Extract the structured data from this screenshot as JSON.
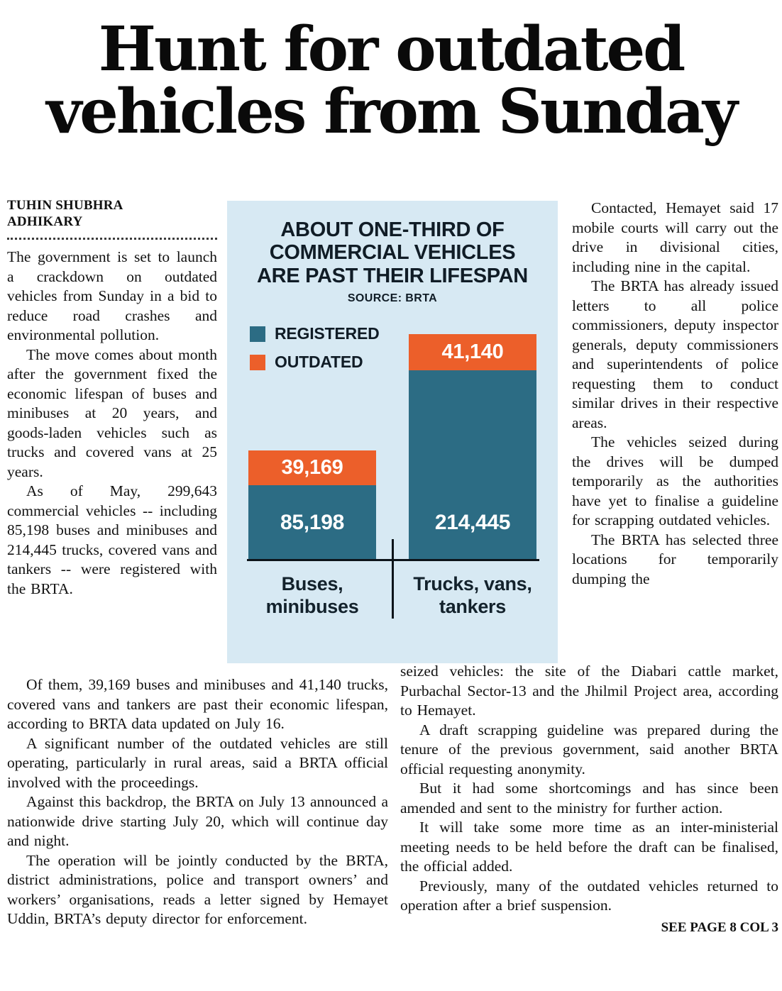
{
  "headline": "Hunt for outdated vehicles from Sunday",
  "byline": "TUHIN SHUBHRA ADHIKARY",
  "article": {
    "left_column": [
      "The government is set to launch a crackdown on outdated vehicles from Sunday in a bid to reduce road crashes and environmental pollution.",
      "The move comes about month after the government fixed the economic lifespan of buses and minibuses at 20 years, and goods-laden vehicles such as trucks and covered vans at 25 years.",
      "As of May, 299,643 commercial vehicles -- including 85,198 buses and minibuses and 214,445 trucks, covered vans and tankers -- were registered with the BRTA."
    ],
    "bottom_left": [
      "Of them, 39,169 buses and minibuses and 41,140 trucks, covered vans and tankers are past their economic lifespan, according to BRTA data updated on July 16.",
      "A significant number of the outdated vehicles are still operating, particularly in rural areas, said a BRTA official involved with the proceedings.",
      "Against this backdrop, the BRTA on July 13 announced a nationwide drive starting July 20, which will continue day and night.",
      "The operation will be jointly conducted by the BRTA, district administrations, police and transport owners’ and workers’ organisations, reads a letter signed by Hemayet Uddin, BRTA’s deputy director for enforcement."
    ],
    "right_column": [
      "Contacted, Hemayet said 17 mobile courts will carry out the drive in divisional cities, including nine in the capital.",
      "The BRTA has already issued letters to all police commissioners, deputy inspector generals, deputy commissioners and superintendents of police requesting them to conduct similar drives in their respective areas.",
      "The vehicles seized during the drives will be dumped temporarily as the authorities have yet to finalise a guideline for scrapping outdated vehicles.",
      "The BRTA has selected three locations for temporarily dumping the"
    ],
    "bottom_right": [
      "seized vehicles: the site of the Diabari cattle market, Purbachal Sector-13 and the Jhilmil Project area, according to Hemayet.",
      "A draft scrapping guideline was prepared during the tenure of the previous government, said another BRTA official requesting anonymity.",
      "But it had some shortcomings and has since been amended and sent to the ministry for further action.",
      "It will take some more time as an inter-ministerial meeting needs to be held before the draft can be finalised, the official added.",
      "Previously, many of the outdated vehicles returned to operation after a brief suspension."
    ],
    "continuation": "SEE PAGE 8 COL 3"
  },
  "chart_data": {
    "type": "bar",
    "stacked": true,
    "title": "ABOUT ONE-THIRD OF COMMERCIAL VEHICLES ARE PAST THEIR LIFESPAN",
    "title_lines": [
      "ABOUT ONE-THIRD OF",
      "COMMERCIAL VEHICLES",
      "ARE PAST THEIR LIFESPAN"
    ],
    "source": "SOURCE: BRTA",
    "categories": [
      "Buses, minibuses",
      "Trucks, vans, tankers"
    ],
    "category_lines": [
      [
        "Buses,",
        "minibuses"
      ],
      [
        "Trucks, vans,",
        "tankers"
      ]
    ],
    "series": [
      {
        "name": "REGISTERED",
        "color": "#2c6c84",
        "values": [
          85198,
          214445
        ],
        "labels": [
          "85,198",
          "214,445"
        ]
      },
      {
        "name": "OUTDATED",
        "color": "#ec5f2a",
        "values": [
          39169,
          41140
        ],
        "labels": [
          "39,169",
          "41,140"
        ]
      }
    ],
    "legend_position": "top-left",
    "background": "#d7e9f3"
  }
}
